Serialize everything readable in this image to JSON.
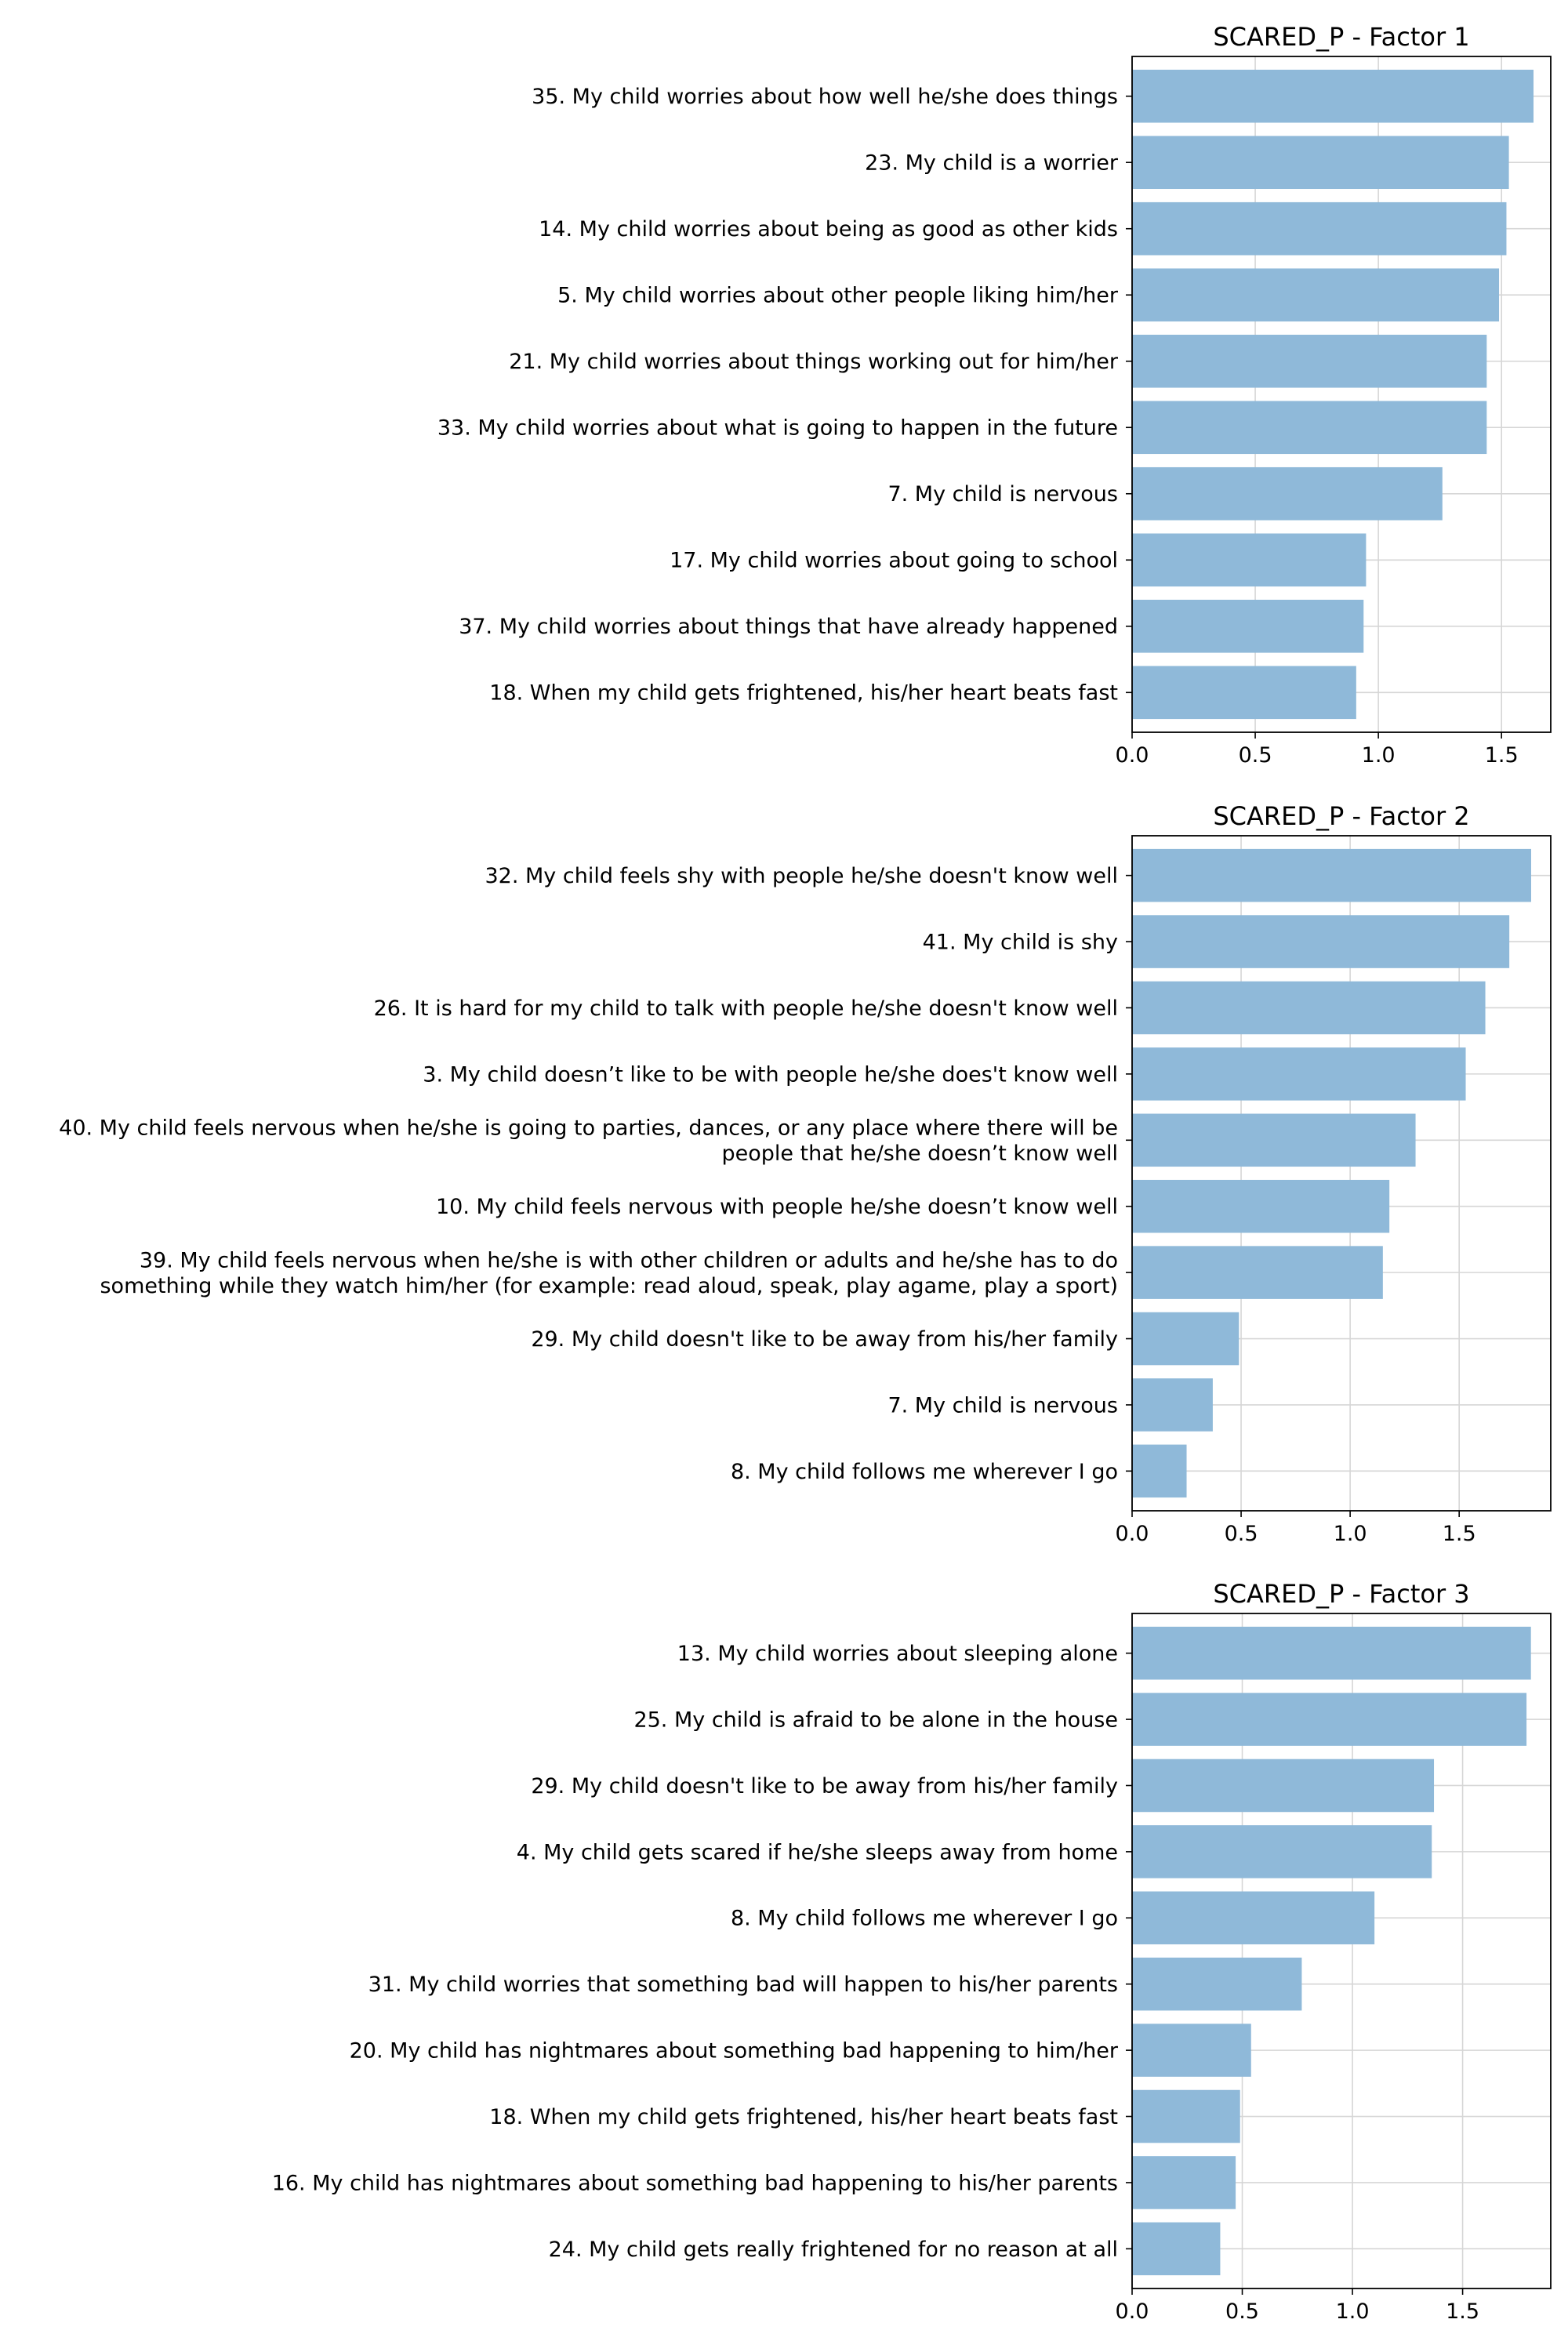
{
  "chart_data": [
    {
      "type": "bar",
      "orientation": "horizontal",
      "title": "SCARED_P - Factor 1",
      "xlabel": "",
      "ylabel": "",
      "xlim": [
        0,
        1.7
      ],
      "xticks": [
        0.0,
        0.5,
        1.0,
        1.5
      ],
      "xtick_labels": [
        "0.0",
        "0.5",
        "1.0",
        "1.5"
      ],
      "grid": true,
      "bar_color": "#8fb9d9",
      "categories": [
        "35. My child worries about how well he/she does things",
        "23. My child is a worrier",
        "14. My child worries about being as good as other kids",
        "5. My child worries about other people liking him/her",
        "21. My child worries about things working out for him/her",
        "33. My child worries about what is going to happen in the future",
        "7. My child is nervous",
        "17. My child worries about going to school",
        "37. My child worries about things that have already happened",
        "18. When my child gets frightened, his/her heart beats fast"
      ],
      "values": [
        1.63,
        1.53,
        1.52,
        1.49,
        1.44,
        1.44,
        1.26,
        0.95,
        0.94,
        0.91
      ]
    },
    {
      "type": "bar",
      "orientation": "horizontal",
      "title": "SCARED_P - Factor 2",
      "xlabel": "",
      "ylabel": "",
      "xlim": [
        0,
        1.92
      ],
      "xticks": [
        0.0,
        0.5,
        1.0,
        1.5
      ],
      "xtick_labels": [
        "0.0",
        "0.5",
        "1.0",
        "1.5"
      ],
      "grid": true,
      "bar_color": "#8fb9d9",
      "categories": [
        "32. My child feels shy with people he/she doesn't know well",
        "41. My child is shy",
        "26. It is hard for my child to talk with people he/she doesn't know well",
        "3. My child doesn’t like to be with people he/she does't know well",
        "40. My child feels nervous when he/she is going to parties, dances, or any place where there will be\npeople that he/she doesn’t know well",
        "10. My child feels nervous with people he/she doesn’t know well",
        "39. My child feels nervous when he/she is with other children or adults and he/she has to do\nsomething while they watch him/her (for example: read aloud, speak, play agame, play a sport)",
        "29. My child doesn't like to be away from his/her family",
        "7. My child is nervous",
        "8. My child follows me wherever I go"
      ],
      "values": [
        1.83,
        1.73,
        1.62,
        1.53,
        1.3,
        1.18,
        1.15,
        0.49,
        0.37,
        0.25
      ]
    },
    {
      "type": "bar",
      "orientation": "horizontal",
      "title": "SCARED_P - Factor 3",
      "xlabel": "",
      "ylabel": "",
      "xlim": [
        0,
        1.9
      ],
      "xticks": [
        0.0,
        0.5,
        1.0,
        1.5
      ],
      "xtick_labels": [
        "0.0",
        "0.5",
        "1.0",
        "1.5"
      ],
      "grid": true,
      "bar_color": "#8fb9d9",
      "categories": [
        "13. My child worries about sleeping alone",
        "25. My child is afraid to be alone in the house",
        "29. My child doesn't like to be away from his/her family",
        "4. My child gets scared if he/she sleeps away from home",
        "8. My child follows me wherever I go",
        "31. My child worries that something bad will happen to his/her parents",
        "20. My child has nightmares about something bad happening to him/her",
        "18. When my child gets frightened, his/her heart beats fast",
        "16. My child has nightmares about something bad happening to his/her parents",
        "24. My child gets really frightened for no reason at all"
      ],
      "values": [
        1.81,
        1.79,
        1.37,
        1.36,
        1.1,
        0.77,
        0.54,
        0.49,
        0.47,
        0.4
      ]
    }
  ]
}
